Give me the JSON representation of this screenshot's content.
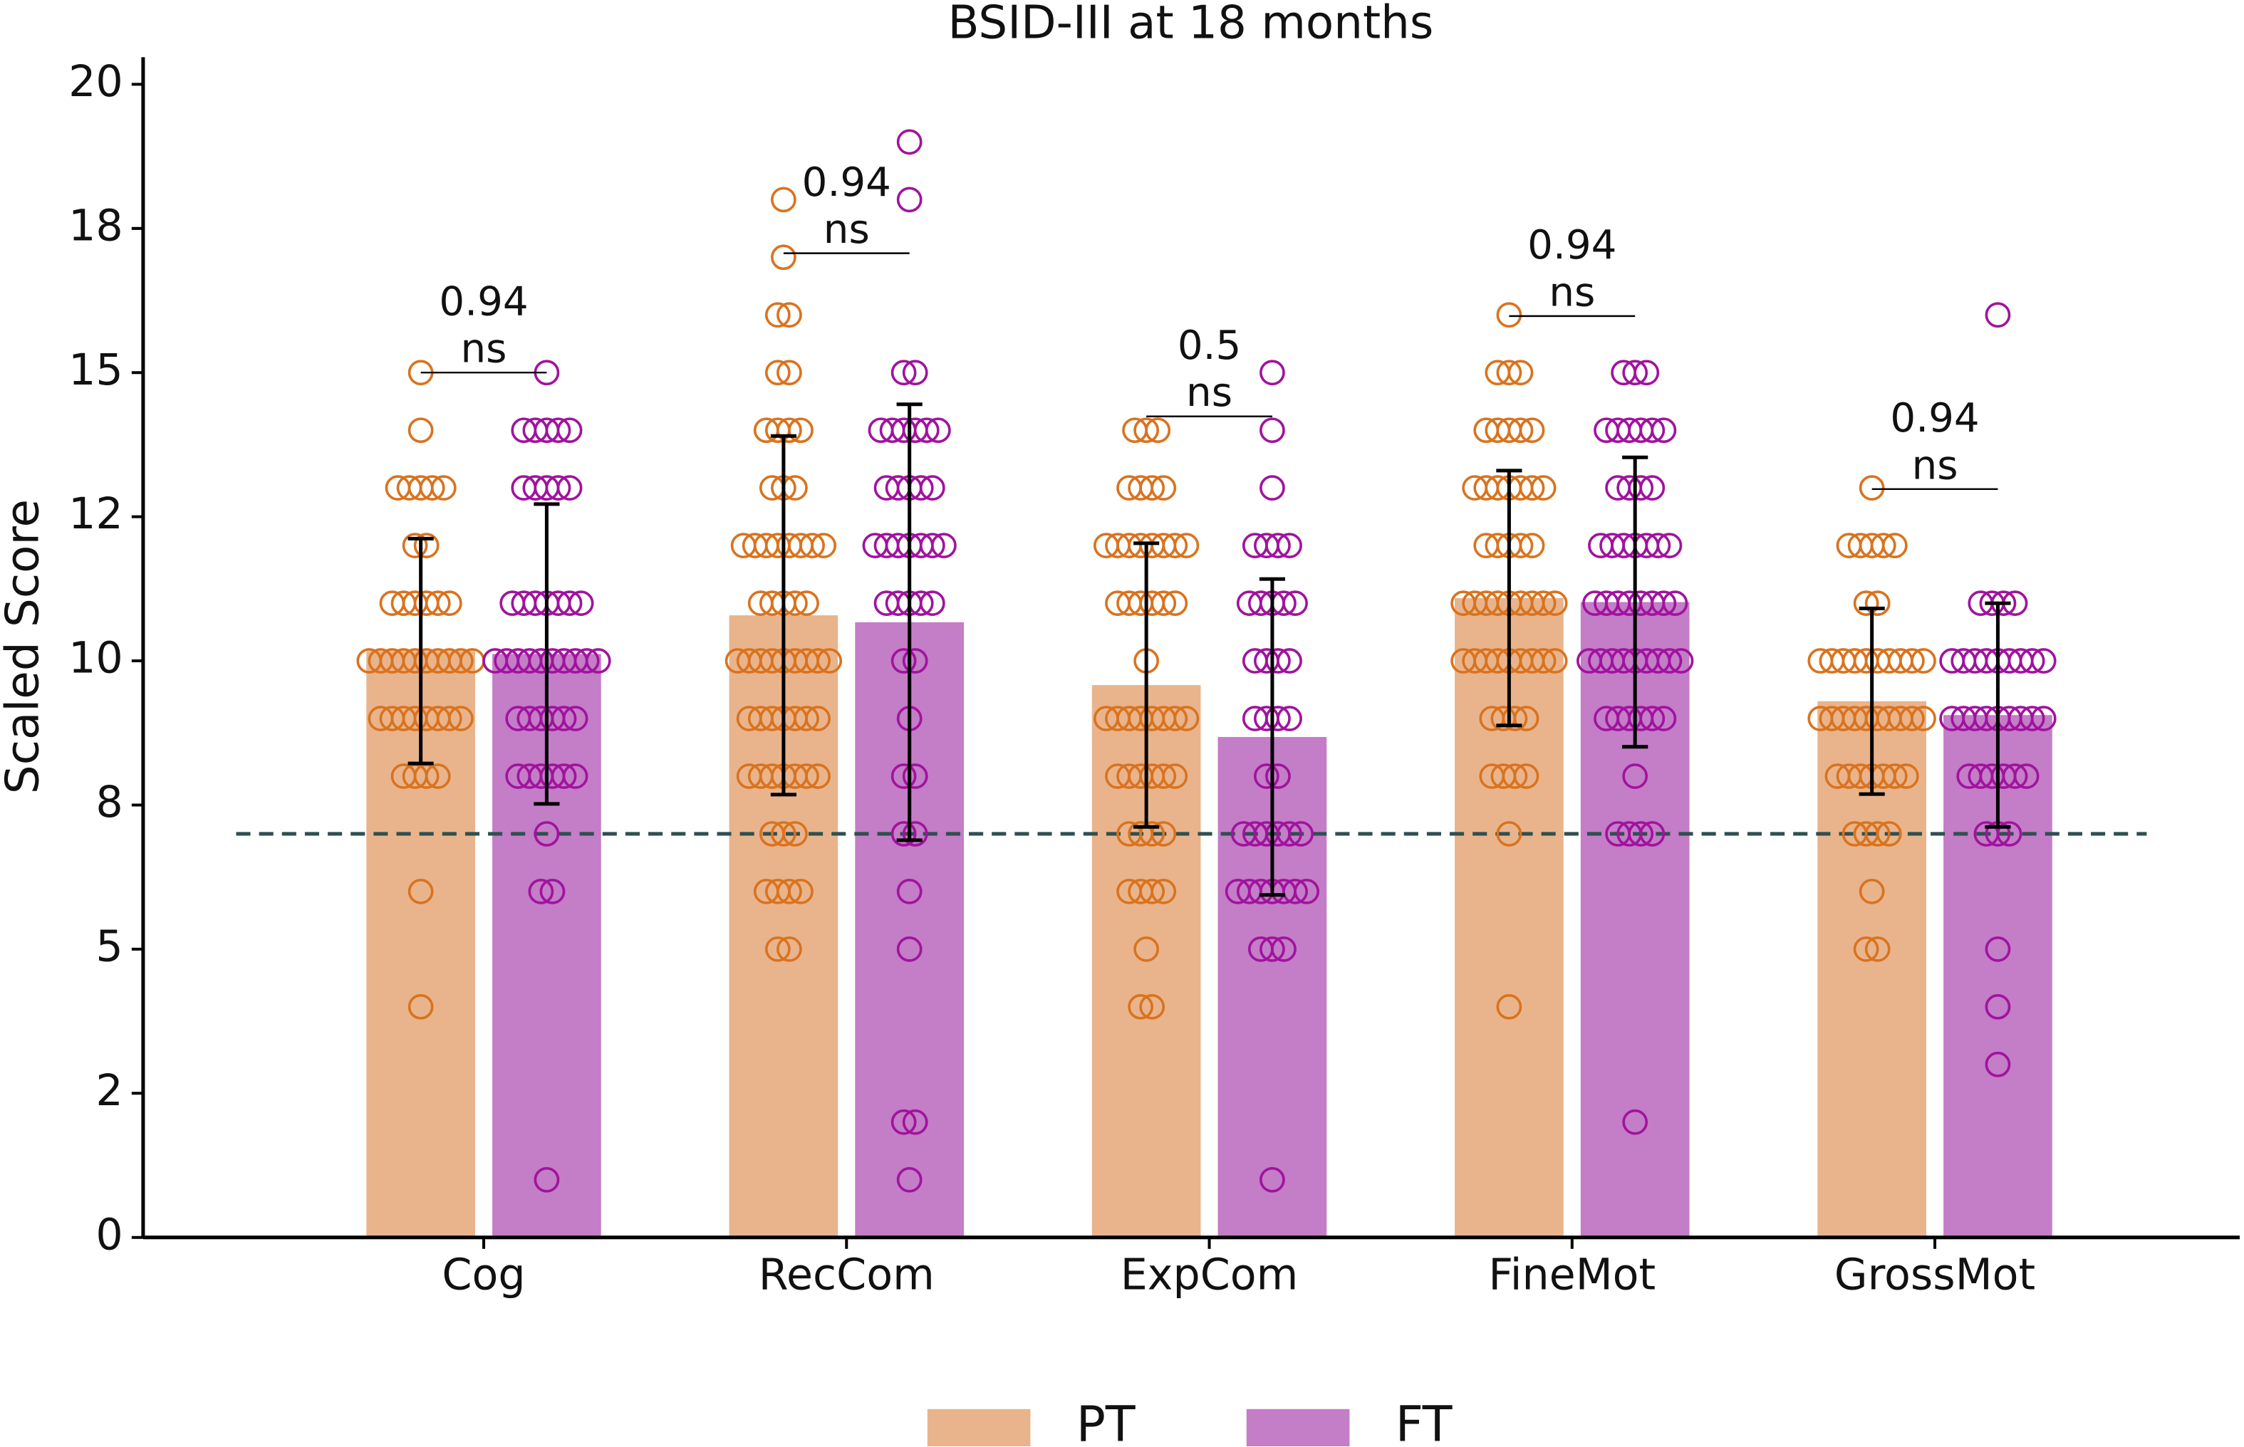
{
  "chart_data": {
    "type": "bar",
    "title": "BSID-III at 18 months",
    "ylabel": "Scaled Score",
    "categories": [
      "Cog",
      "RecCom",
      "ExpCom",
      "FineMot",
      "GrossMot"
    ],
    "ylim": [
      0,
      20.47
    ],
    "yticks": [
      0,
      {
        "value": 2.5,
        "label": "2"
      },
      5,
      {
        "value": 7.5,
        "label": "8"
      },
      10,
      {
        "value": 12.5,
        "label": "12"
      },
      15,
      {
        "value": 17.5,
        "label": "18"
      },
      20
    ],
    "reference_line": 7,
    "series": [
      {
        "name": "PT",
        "color": "#e9b48c",
        "point_color": "#d9731f",
        "values": [
          10.17,
          10.79,
          9.58,
          11.09,
          9.3
        ],
        "errors": [
          1.95,
          3.11,
          2.46,
          2.21,
          1.61
        ],
        "points": [
          [
            15,
            14,
            13,
            13,
            13,
            13,
            13,
            12,
            12,
            11,
            11,
            11,
            11,
            11,
            11,
            10,
            10,
            10,
            10,
            10,
            10,
            10,
            10,
            10,
            10,
            9,
            9,
            9,
            9,
            9,
            9,
            9,
            9,
            8,
            8,
            8,
            8,
            6,
            4
          ],
          [
            18,
            17,
            16,
            16,
            15,
            15,
            14,
            14,
            14,
            14,
            13,
            13,
            13,
            12,
            12,
            12,
            12,
            12,
            12,
            12,
            12,
            11,
            11,
            11,
            11,
            11,
            10,
            10,
            10,
            10,
            10,
            10,
            10,
            10,
            10,
            9,
            9,
            9,
            9,
            9,
            9,
            9,
            8,
            8,
            8,
            8,
            8,
            8,
            8,
            7,
            7,
            7,
            6,
            6,
            6,
            6,
            5,
            5
          ],
          [
            14,
            14,
            14,
            13,
            13,
            13,
            13,
            12,
            12,
            12,
            12,
            12,
            12,
            12,
            12,
            11,
            11,
            11,
            11,
            11,
            11,
            10,
            9,
            9,
            9,
            9,
            9,
            9,
            9,
            9,
            8,
            8,
            8,
            8,
            8,
            8,
            7,
            7,
            7,
            7,
            6,
            6,
            6,
            6,
            5,
            4,
            4
          ],
          [
            16,
            15,
            15,
            15,
            14,
            14,
            14,
            14,
            14,
            13,
            13,
            13,
            13,
            13,
            13,
            13,
            12,
            12,
            12,
            12,
            12,
            11,
            11,
            11,
            11,
            11,
            11,
            11,
            11,
            11,
            10,
            10,
            10,
            10,
            10,
            10,
            10,
            10,
            10,
            9,
            9,
            9,
            9,
            8,
            8,
            8,
            8,
            7,
            4
          ],
          [
            13,
            12,
            12,
            12,
            12,
            12,
            11,
            11,
            10,
            10,
            10,
            10,
            10,
            10,
            10,
            10,
            10,
            10,
            9,
            9,
            9,
            9,
            9,
            9,
            9,
            9,
            9,
            9,
            8,
            8,
            8,
            8,
            8,
            8,
            8,
            7,
            7,
            7,
            7,
            6,
            5,
            5
          ]
        ]
      },
      {
        "name": "FT",
        "color": "#c47dc7",
        "point_color": "#a0139e",
        "values": [
          10.12,
          10.67,
          8.68,
          11.02,
          9.06
        ],
        "errors": [
          2.6,
          3.78,
          2.74,
          2.51,
          1.94
        ],
        "points": [
          [
            15,
            14,
            14,
            14,
            14,
            14,
            13,
            13,
            13,
            13,
            13,
            11,
            11,
            11,
            11,
            11,
            11,
            11,
            10,
            10,
            10,
            10,
            10,
            10,
            10,
            10,
            10,
            10,
            9,
            9,
            9,
            9,
            9,
            9,
            8,
            8,
            8,
            8,
            8,
            8,
            7,
            6,
            6,
            1
          ],
          [
            19,
            18,
            15,
            15,
            14,
            14,
            14,
            14,
            14,
            14,
            13,
            13,
            13,
            13,
            13,
            12,
            12,
            12,
            12,
            12,
            12,
            12,
            11,
            11,
            11,
            11,
            11,
            10,
            10,
            9,
            8,
            8,
            7,
            7,
            6,
            5,
            2,
            2,
            1
          ],
          [
            15,
            14,
            13,
            12,
            12,
            12,
            12,
            11,
            11,
            11,
            11,
            11,
            10,
            10,
            10,
            10,
            9,
            9,
            9,
            9,
            8,
            8,
            7,
            7,
            7,
            7,
            7,
            7,
            6,
            6,
            6,
            6,
            6,
            6,
            6,
            5,
            5,
            5,
            1
          ],
          [
            15,
            15,
            15,
            14,
            14,
            14,
            14,
            14,
            14,
            13,
            13,
            13,
            13,
            12,
            12,
            12,
            12,
            12,
            12,
            12,
            11,
            11,
            11,
            11,
            11,
            11,
            11,
            11,
            10,
            10,
            10,
            10,
            10,
            10,
            10,
            10,
            10,
            9,
            9,
            9,
            9,
            9,
            9,
            8,
            7,
            7,
            7,
            7,
            2
          ],
          [
            16,
            11,
            11,
            11,
            11,
            10,
            10,
            10,
            10,
            10,
            10,
            10,
            10,
            10,
            9,
            9,
            9,
            9,
            9,
            9,
            9,
            9,
            9,
            8,
            8,
            8,
            8,
            8,
            8,
            7,
            7,
            7,
            5,
            4,
            3
          ]
        ]
      }
    ],
    "pvalues": [
      0.94,
      0.94,
      0.5,
      0.94,
      0.94
    ],
    "sig_labels": [
      "ns",
      "ns",
      "ns",
      "ns",
      "ns"
    ],
    "sig_y": [
      15,
      17.07,
      14.24,
      15.98,
      12.98
    ]
  }
}
